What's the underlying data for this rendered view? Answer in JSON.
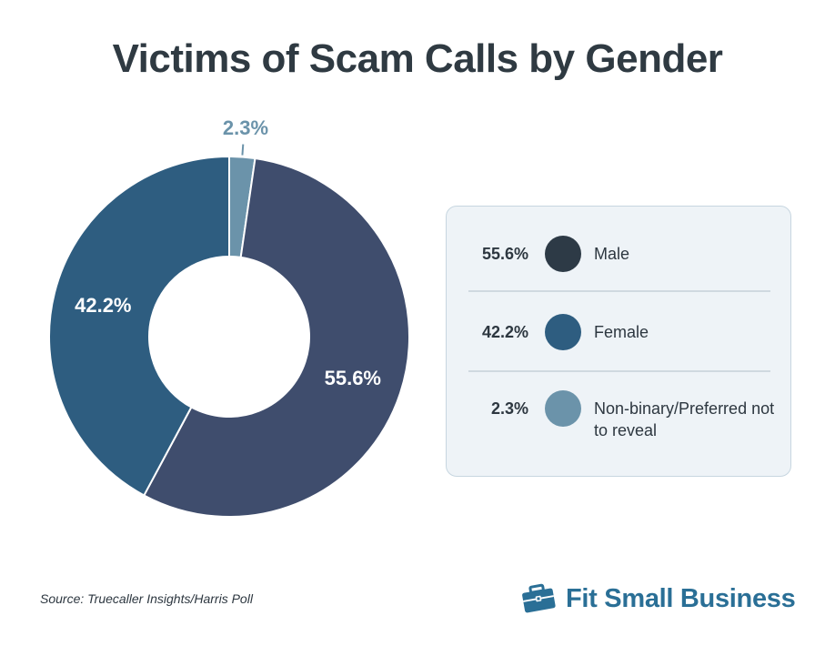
{
  "chart_data": {
    "type": "pie",
    "title": "Victims of Scam Calls by Gender",
    "categories": [
      "Male",
      "Female",
      "Non-binary/Preferred not to reveal"
    ],
    "values": [
      55.6,
      42.2,
      2.3
    ],
    "labels": [
      "55.6%",
      "42.2%",
      "2.3%"
    ],
    "colors": [
      "#3f4d6d",
      "#2e5d80",
      "#6b93aa"
    ],
    "legend_dot_colors": [
      "#2d3a46",
      "#2e5d80",
      "#6b93aa"
    ],
    "legend": "right"
  },
  "legend": {
    "items": [
      {
        "value": "55.6%",
        "label": "Male"
      },
      {
        "value": "42.2%",
        "label": "Female"
      },
      {
        "value": "2.3%",
        "label": "Non-binary/Preferred not to reveal"
      }
    ]
  },
  "footer": {
    "source": "Source: Truecaller Insights/Harris Poll",
    "brand": "Fit Small Business"
  }
}
